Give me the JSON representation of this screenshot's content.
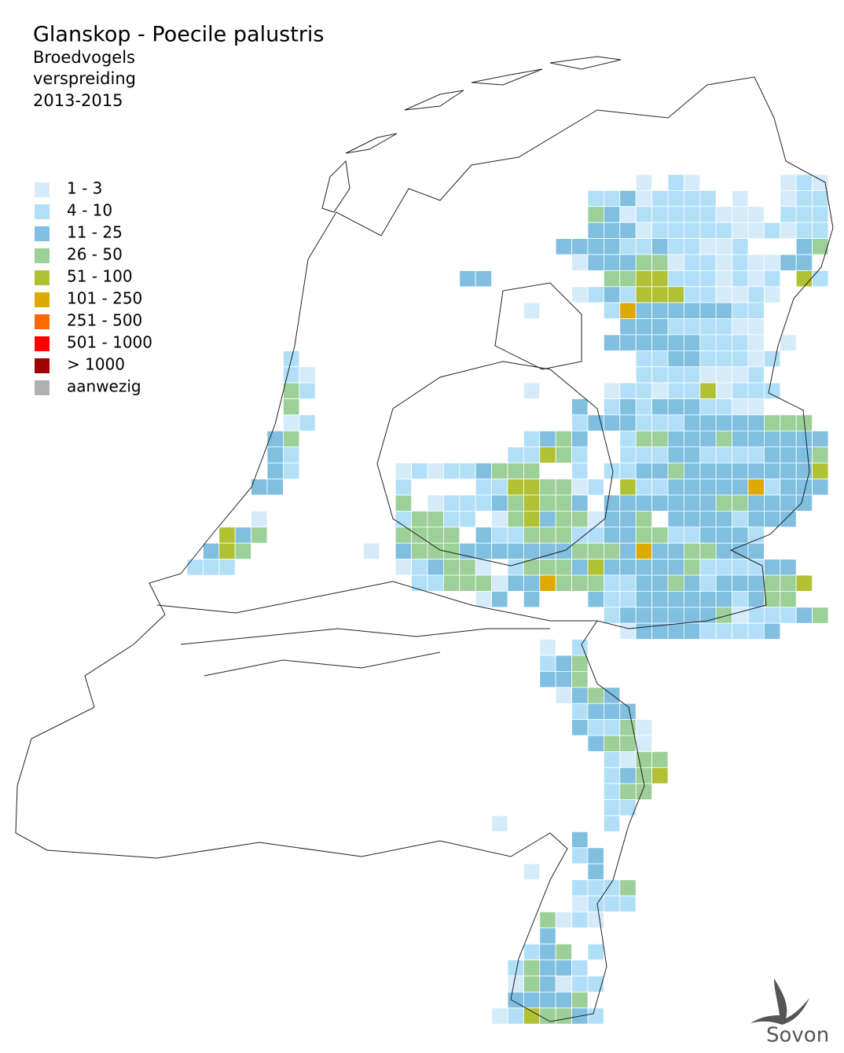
{
  "header": {
    "title": "Glanskop - Poecile palustris",
    "subtitle": [
      "Broedvogels",
      "verspreiding",
      "2013-2015"
    ]
  },
  "legend": {
    "items": [
      {
        "label": "1 - 3",
        "color": "#d5ebfa"
      },
      {
        "label": "4 - 10",
        "color": "#b2dff8"
      },
      {
        "label": "11 - 25",
        "color": "#80bfe0"
      },
      {
        "label": "26 - 50",
        "color": "#9dcf98"
      },
      {
        "label": "51 - 100",
        "color": "#b0c232"
      },
      {
        "label": "101 - 250",
        "color": "#dfaa00"
      },
      {
        "label": "251 - 500",
        "color": "#ff6a00"
      },
      {
        "label": "501 - 1000",
        "color": "#ff0000"
      },
      {
        "label": "> 1000",
        "color": "#a00000"
      },
      {
        "label": "aanwezig",
        "color": "#b0b0b0"
      }
    ]
  },
  "logo": {
    "text": "Sovon"
  }
}
